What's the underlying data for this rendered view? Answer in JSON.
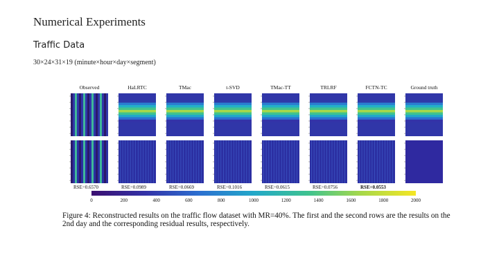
{
  "slide": {
    "title": "Numerical Experiments",
    "subtitle": "Traffic Data",
    "dims": "30×24×31×19 (minute×hour×day×segment)"
  },
  "figure": {
    "methods": [
      "Observed",
      "HaLRTC",
      "TMac",
      "t-SVD",
      "TMac-TT",
      "TRLRF",
      "FCTN-TC",
      "Ground truth"
    ],
    "rse": [
      "RSE=0.6570",
      "RSE=0.0989",
      "RSE=0.0669",
      "RSE=0.1016",
      "RSE=0.0615",
      "RSE=0.0756",
      "RSE=0.0553"
    ],
    "best_index": 6,
    "colorbar_ticks": [
      "0",
      "200",
      "400",
      "600",
      "800",
      "1000",
      "1200",
      "1400",
      "1600",
      "1800",
      "2000"
    ],
    "colormap": [
      "#3b0f70",
      "#3333a8",
      "#2c6fd0",
      "#22a8c9",
      "#3fc38f",
      "#a6d84a",
      "#f5e624"
    ],
    "caption": "Figure 4: Reconstructed results on the traffic flow dataset with MR=40%. The first and the second rows are the results on the 2nd day and the corresponding residual results, respectively."
  }
}
